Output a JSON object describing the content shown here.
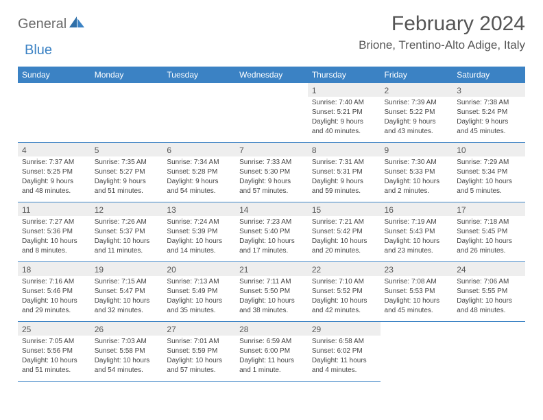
{
  "logo": {
    "text1": "General",
    "text2": "Blue"
  },
  "title": "February 2024",
  "location": "Brione, Trentino-Alto Adige, Italy",
  "colors": {
    "header_bg": "#3b82c4",
    "header_text": "#ffffff",
    "daynum_bg": "#eeeeee",
    "border": "#3b82c4",
    "logo_gray": "#6b6b6b",
    "logo_blue": "#3b82c4",
    "body_text": "#444444"
  },
  "weekdays": [
    "Sunday",
    "Monday",
    "Tuesday",
    "Wednesday",
    "Thursday",
    "Friday",
    "Saturday"
  ],
  "weeks": [
    [
      null,
      null,
      null,
      null,
      {
        "n": "1",
        "sunrise": "7:40 AM",
        "sunset": "5:21 PM",
        "daylight": "9 hours and 40 minutes."
      },
      {
        "n": "2",
        "sunrise": "7:39 AM",
        "sunset": "5:22 PM",
        "daylight": "9 hours and 43 minutes."
      },
      {
        "n": "3",
        "sunrise": "7:38 AM",
        "sunset": "5:24 PM",
        "daylight": "9 hours and 45 minutes."
      }
    ],
    [
      {
        "n": "4",
        "sunrise": "7:37 AM",
        "sunset": "5:25 PM",
        "daylight": "9 hours and 48 minutes."
      },
      {
        "n": "5",
        "sunrise": "7:35 AM",
        "sunset": "5:27 PM",
        "daylight": "9 hours and 51 minutes."
      },
      {
        "n": "6",
        "sunrise": "7:34 AM",
        "sunset": "5:28 PM",
        "daylight": "9 hours and 54 minutes."
      },
      {
        "n": "7",
        "sunrise": "7:33 AM",
        "sunset": "5:30 PM",
        "daylight": "9 hours and 57 minutes."
      },
      {
        "n": "8",
        "sunrise": "7:31 AM",
        "sunset": "5:31 PM",
        "daylight": "9 hours and 59 minutes."
      },
      {
        "n": "9",
        "sunrise": "7:30 AM",
        "sunset": "5:33 PM",
        "daylight": "10 hours and 2 minutes."
      },
      {
        "n": "10",
        "sunrise": "7:29 AM",
        "sunset": "5:34 PM",
        "daylight": "10 hours and 5 minutes."
      }
    ],
    [
      {
        "n": "11",
        "sunrise": "7:27 AM",
        "sunset": "5:36 PM",
        "daylight": "10 hours and 8 minutes."
      },
      {
        "n": "12",
        "sunrise": "7:26 AM",
        "sunset": "5:37 PM",
        "daylight": "10 hours and 11 minutes."
      },
      {
        "n": "13",
        "sunrise": "7:24 AM",
        "sunset": "5:39 PM",
        "daylight": "10 hours and 14 minutes."
      },
      {
        "n": "14",
        "sunrise": "7:23 AM",
        "sunset": "5:40 PM",
        "daylight": "10 hours and 17 minutes."
      },
      {
        "n": "15",
        "sunrise": "7:21 AM",
        "sunset": "5:42 PM",
        "daylight": "10 hours and 20 minutes."
      },
      {
        "n": "16",
        "sunrise": "7:19 AM",
        "sunset": "5:43 PM",
        "daylight": "10 hours and 23 minutes."
      },
      {
        "n": "17",
        "sunrise": "7:18 AM",
        "sunset": "5:45 PM",
        "daylight": "10 hours and 26 minutes."
      }
    ],
    [
      {
        "n": "18",
        "sunrise": "7:16 AM",
        "sunset": "5:46 PM",
        "daylight": "10 hours and 29 minutes."
      },
      {
        "n": "19",
        "sunrise": "7:15 AM",
        "sunset": "5:47 PM",
        "daylight": "10 hours and 32 minutes."
      },
      {
        "n": "20",
        "sunrise": "7:13 AM",
        "sunset": "5:49 PM",
        "daylight": "10 hours and 35 minutes."
      },
      {
        "n": "21",
        "sunrise": "7:11 AM",
        "sunset": "5:50 PM",
        "daylight": "10 hours and 38 minutes."
      },
      {
        "n": "22",
        "sunrise": "7:10 AM",
        "sunset": "5:52 PM",
        "daylight": "10 hours and 42 minutes."
      },
      {
        "n": "23",
        "sunrise": "7:08 AM",
        "sunset": "5:53 PM",
        "daylight": "10 hours and 45 minutes."
      },
      {
        "n": "24",
        "sunrise": "7:06 AM",
        "sunset": "5:55 PM",
        "daylight": "10 hours and 48 minutes."
      }
    ],
    [
      {
        "n": "25",
        "sunrise": "7:05 AM",
        "sunset": "5:56 PM",
        "daylight": "10 hours and 51 minutes."
      },
      {
        "n": "26",
        "sunrise": "7:03 AM",
        "sunset": "5:58 PM",
        "daylight": "10 hours and 54 minutes."
      },
      {
        "n": "27",
        "sunrise": "7:01 AM",
        "sunset": "5:59 PM",
        "daylight": "10 hours and 57 minutes."
      },
      {
        "n": "28",
        "sunrise": "6:59 AM",
        "sunset": "6:00 PM",
        "daylight": "11 hours and 1 minute."
      },
      {
        "n": "29",
        "sunrise": "6:58 AM",
        "sunset": "6:02 PM",
        "daylight": "11 hours and 4 minutes."
      },
      null,
      null
    ]
  ],
  "labels": {
    "sunrise": "Sunrise:",
    "sunset": "Sunset:",
    "daylight": "Daylight:"
  }
}
